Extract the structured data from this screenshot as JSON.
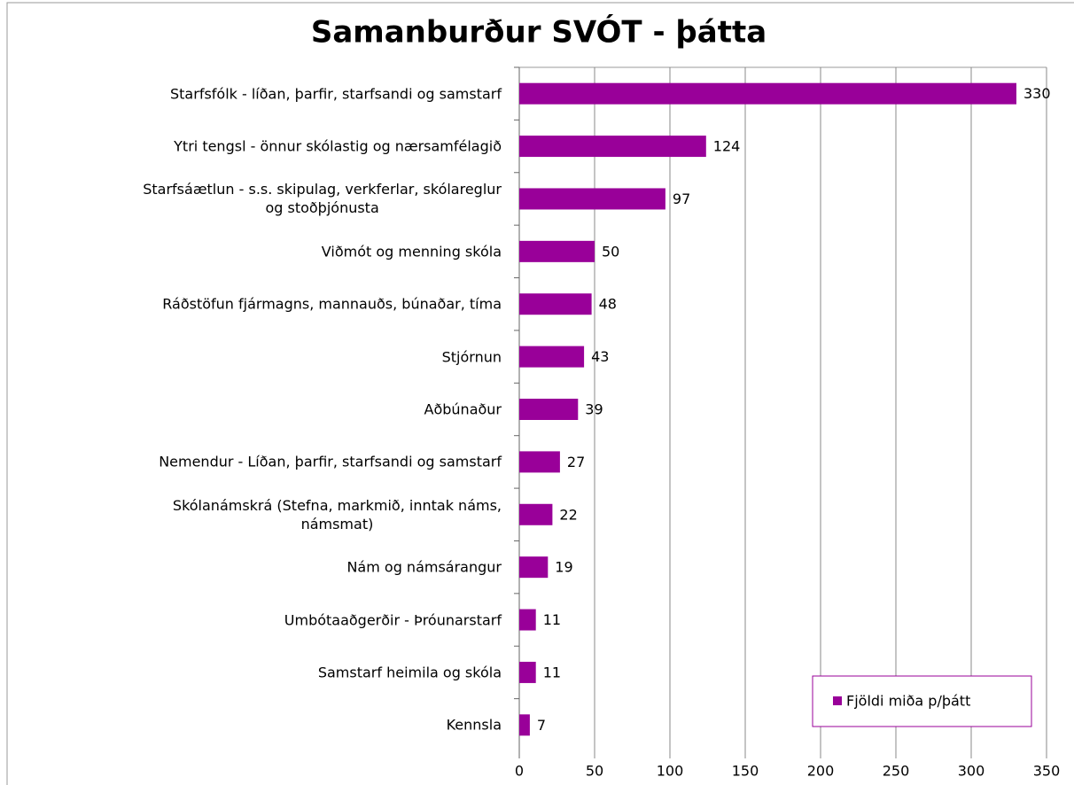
{
  "chart_data": {
    "type": "bar",
    "orientation": "horizontal",
    "title": "Samanburður SVÓT - þátta",
    "categories": [
      "Starfsfólk - líðan, þarfir, starfsandi og samstarf",
      "Ytri tengsl - önnur skólastig og nærsamfélagið",
      "Starfsáætlun - s.s. skipulag, verkferlar, skólareglur\nog stoðþjónusta",
      "Viðmót og menning skóla",
      "Ráðstöfun fjármagns, mannauðs, búnaðar, tíma",
      "Stjórnun",
      "Aðbúnaður",
      "Nemendur - Líðan, þarfir, starfsandi og samstarf",
      "Skólanámskrá (Stefna, markmið, inntak náms,\nnámsmat)",
      "Nám og námsárangur",
      "Umbótaaðgerðir - Þróunarstarf",
      "Samstarf heimila og skóla",
      "Kennsla"
    ],
    "series": [
      {
        "name": "Fjöldi miða p/þátt",
        "color": "#990099",
        "values": [
          330,
          124,
          97,
          50,
          48,
          43,
          39,
          27,
          22,
          19,
          11,
          11,
          7
        ]
      }
    ],
    "xlim": [
      0,
      350
    ],
    "xticks": [
      0,
      50,
      100,
      150,
      200,
      250,
      300,
      350
    ],
    "grid": true,
    "legend": "lower right"
  }
}
